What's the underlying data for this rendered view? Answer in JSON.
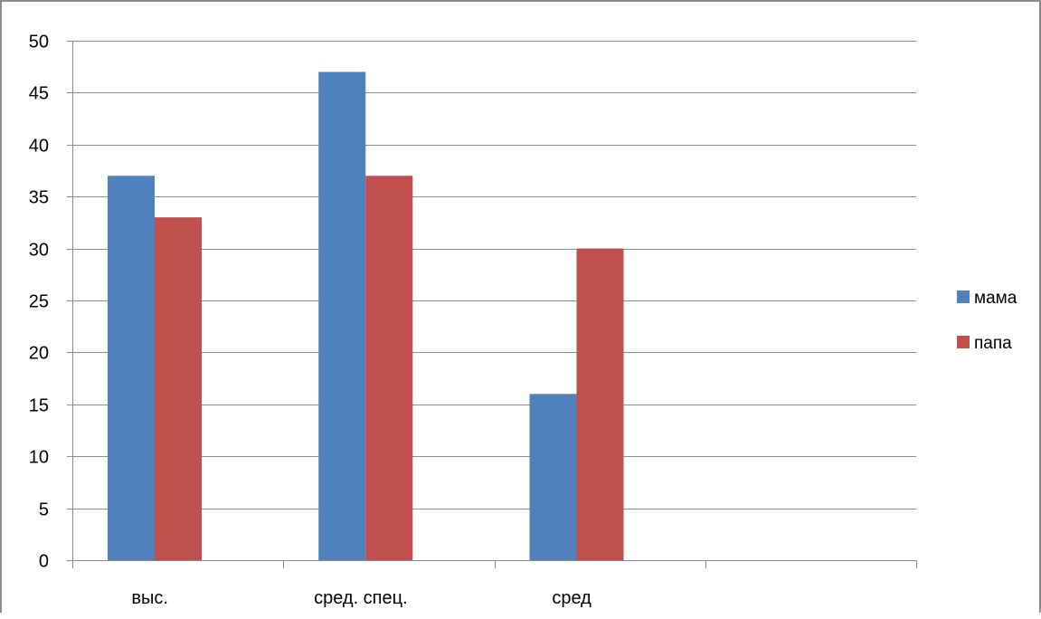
{
  "chart_data": {
    "type": "bar",
    "categories": [
      "выс.",
      "сред. спец.",
      "сред",
      ""
    ],
    "series": [
      {
        "name": "мама",
        "values": [
          37,
          47,
          16,
          null
        ],
        "color": "#4f81bd"
      },
      {
        "name": "папа",
        "values": [
          33,
          37,
          30,
          null
        ],
        "color": "#c0504d"
      }
    ],
    "ylim": [
      0,
      50
    ],
    "yticks": [
      0,
      5,
      10,
      15,
      20,
      25,
      30,
      35,
      40,
      45,
      50
    ],
    "grid": true,
    "legend_position": "right"
  }
}
